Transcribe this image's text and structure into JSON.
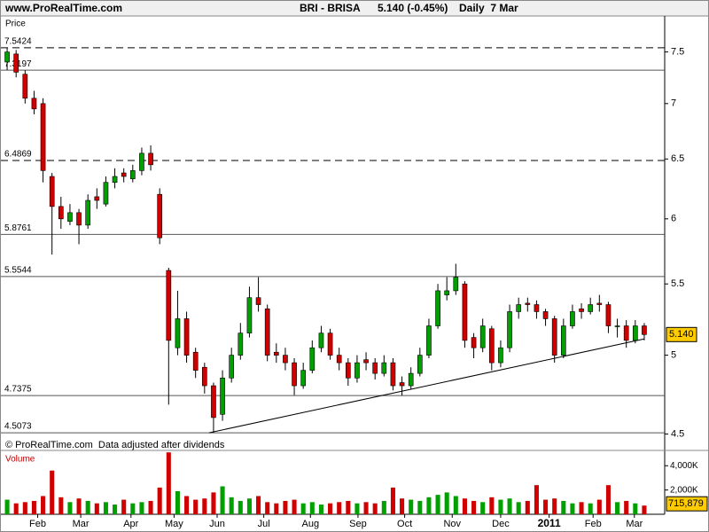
{
  "header": {
    "site": "www.ProRealTime.com",
    "title": "BRI - BRISA",
    "quote": "5.140 (-0.45%)",
    "period": "Daily  7 Mar"
  },
  "chart_data": [
    {
      "type": "candlestick",
      "y_label": "Price",
      "log_scale": true,
      "footnote": "© ProRealTime.com  Data adjusted after dividends",
      "up_color": "#00a000",
      "down_color": "#d00000",
      "ylim": [
        4.46,
        7.87
      ],
      "yticks": [
        4.5,
        5,
        5.5,
        6,
        6.5,
        7,
        7.5
      ],
      "xlim": [
        0,
        72
      ],
      "xticks": [
        {
          "value": 3.9,
          "label": "Feb"
        },
        {
          "value": 8.7,
          "label": "Mar"
        },
        {
          "value": 14.3,
          "label": "Apr"
        },
        {
          "value": 19.1,
          "label": "May"
        },
        {
          "value": 23.9,
          "label": "Jun"
        },
        {
          "value": 29.1,
          "label": "Jul"
        },
        {
          "value": 34.3,
          "label": "Aug"
        },
        {
          "value": 39.6,
          "label": "Sep"
        },
        {
          "value": 44.8,
          "label": "Oct"
        },
        {
          "value": 50.1,
          "label": "Nov"
        },
        {
          "value": 55.5,
          "label": "Dec"
        },
        {
          "value": 60.9,
          "label": "2011"
        },
        {
          "value": 65.8,
          "label": "Feb"
        },
        {
          "value": 70.4,
          "label": "Mar"
        }
      ],
      "open": [
        7.4,
        7.48,
        7.28,
        7.05,
        7.0,
        6.35,
        6.1,
        5.98,
        6.05,
        5.95,
        6.18,
        6.12,
        6.3,
        6.38,
        6.33,
        6.4,
        6.55,
        6.2,
        5.6,
        5.05,
        5.25,
        5.02,
        4.92,
        4.8,
        4.62,
        4.85,
        5.0,
        5.15,
        5.4,
        5.32,
        5.02,
        5.0,
        4.95,
        4.8,
        4.9,
        5.05,
        5.15,
        5.0,
        4.95,
        4.85,
        4.97,
        4.95,
        4.88,
        4.95,
        4.82,
        4.8,
        4.88,
        5.0,
        5.2,
        5.42,
        5.45,
        5.5,
        5.12,
        5.05,
        5.18,
        4.95,
        5.05,
        5.3,
        5.36,
        5.35,
        5.3,
        5.25,
        5.0,
        5.2,
        5.32,
        5.3,
        5.36,
        5.35,
        5.2,
        5.2,
        5.1,
        5.2
      ],
      "high": [
        7.5424,
        7.52,
        7.32,
        7.12,
        7.05,
        6.38,
        6.18,
        6.12,
        6.08,
        6.2,
        6.25,
        6.35,
        6.42,
        6.42,
        6.45,
        6.6,
        6.62,
        6.25,
        5.62,
        5.45,
        5.3,
        5.05,
        4.95,
        4.82,
        4.9,
        5.05,
        5.22,
        5.48,
        5.55,
        5.35,
        5.08,
        5.05,
        4.98,
        4.95,
        5.1,
        5.2,
        5.18,
        5.05,
        4.98,
        5.0,
        5.02,
        4.98,
        5.0,
        4.98,
        4.86,
        4.92,
        5.05,
        5.25,
        5.5,
        5.55,
        5.65,
        5.52,
        5.15,
        5.25,
        5.2,
        5.1,
        5.35,
        5.4,
        5.4,
        5.38,
        5.32,
        5.27,
        5.25,
        5.35,
        5.36,
        5.4,
        5.42,
        5.37,
        5.25,
        5.24,
        5.24,
        5.22
      ],
      "low": [
        7.32,
        7.25,
        7.0,
        6.9,
        6.3,
        5.72,
        5.92,
        5.95,
        5.8,
        5.92,
        6.08,
        6.1,
        6.25,
        6.3,
        6.3,
        6.36,
        6.4,
        5.8,
        4.68,
        5.0,
        4.95,
        4.85,
        4.75,
        4.5073,
        4.58,
        4.82,
        4.97,
        5.12,
        5.3,
        4.96,
        4.95,
        4.9,
        4.74,
        4.78,
        4.88,
        5.02,
        4.97,
        4.9,
        4.8,
        4.82,
        4.9,
        4.84,
        4.86,
        4.77,
        4.7375,
        4.78,
        4.86,
        4.98,
        5.18,
        5.38,
        5.42,
        5.05,
        4.98,
        5.02,
        4.9,
        4.92,
        5.02,
        5.25,
        5.3,
        5.25,
        5.2,
        4.95,
        4.98,
        5.18,
        5.25,
        5.28,
        5.3,
        5.15,
        5.12,
        5.05,
        5.08,
        5.1
      ],
      "close": [
        7.5,
        7.3,
        7.05,
        6.95,
        6.4,
        6.1,
        6.0,
        6.05,
        5.95,
        6.15,
        6.15,
        6.3,
        6.35,
        6.35,
        6.4,
        6.55,
        6.45,
        5.85,
        5.1,
        5.25,
        5.0,
        4.9,
        4.8,
        4.6,
        4.85,
        5.0,
        5.15,
        5.4,
        5.35,
        5.0,
        5.0,
        4.95,
        4.8,
        4.9,
        5.05,
        5.15,
        5.0,
        4.95,
        4.85,
        4.95,
        4.95,
        4.88,
        4.95,
        4.8,
        4.8,
        4.88,
        5.0,
        5.2,
        5.45,
        5.45,
        5.55,
        5.1,
        5.05,
        5.2,
        4.95,
        5.05,
        5.3,
        5.35,
        5.35,
        5.3,
        5.25,
        5.0,
        5.2,
        5.3,
        5.3,
        5.35,
        5.35,
        5.2,
        5.2,
        5.1,
        5.2,
        5.14
      ],
      "levels": [
        {
          "value": 7.5424,
          "dashed": true
        },
        {
          "value": 7.3197,
          "dashed": false
        },
        {
          "value": 6.4869,
          "dashed": true
        },
        {
          "value": 5.8761,
          "dashed": false
        },
        {
          "value": 5.5544,
          "dashed": false
        },
        {
          "value": 4.7375,
          "dashed": false
        },
        {
          "value": 4.5073,
          "dashed": false
        }
      ],
      "last_price": {
        "value": 5.14,
        "label": "5.140"
      },
      "trendline": {
        "x": [
          23,
          71.5
        ],
        "y": [
          4.5073,
          5.11
        ]
      }
    },
    {
      "type": "bar",
      "title": "Volume",
      "ylim": [
        0,
        5260000
      ],
      "yticks": [
        {
          "value": 2000000,
          "label": "2,000K"
        },
        {
          "value": 4000000,
          "label": "4,000K"
        }
      ],
      "values": [
        1200000,
        900000,
        1000000,
        1100000,
        1500000,
        3600000,
        1400000,
        1000000,
        1300000,
        1100000,
        900000,
        1000000,
        800000,
        1200000,
        900000,
        1000000,
        1100000,
        2200000,
        5100000,
        1900000,
        1500000,
        1200000,
        1300000,
        1800000,
        2300000,
        1400000,
        1100000,
        1300000,
        1500000,
        1000000,
        900000,
        1100000,
        1200000,
        900000,
        1000000,
        800000,
        900000,
        1000000,
        1100000,
        900000,
        1000000,
        900000,
        1100000,
        2200000,
        1300000,
        1200000,
        1100000,
        1400000,
        1600000,
        1800000,
        1500000,
        1300000,
        1100000,
        1000000,
        1400000,
        1200000,
        1300000,
        1000000,
        1100000,
        2400000,
        1200000,
        1300000,
        1100000,
        900000,
        1000000,
        900000,
        1200000,
        2400000,
        1000000,
        1100000,
        900000,
        715879
      ],
      "last_value": {
        "value": 715879,
        "label": "715,879"
      }
    }
  ]
}
